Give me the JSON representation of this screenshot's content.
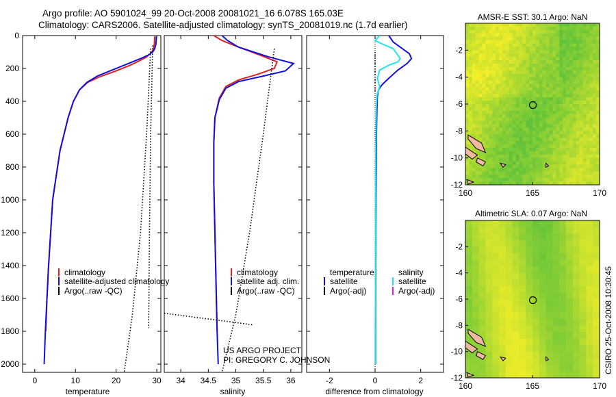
{
  "header": {
    "line1": "Argo profile: AO 5901024_99 20-Oct-2008 20081021_16 6.078S 165.03E",
    "line2": "Climatology: CARS2006. Satellite-adjusted climatology: synTS_20081019.nc (1.7d earlier)"
  },
  "footer_side": "CSIRO 25-Oct-2008 10:30:45",
  "project_credit": [
    "US ARGO PROJECT",
    "PI: GREGORY C. JOHNSON"
  ],
  "colors": {
    "climatology": "#e02020",
    "satellite": "#1010dd",
    "satellite_diff_salinity": "#22e4ee",
    "argo": "#000000",
    "argo_adj_salinity": "#dd22dd",
    "land": "#f0b8a0"
  },
  "chart_data": [
    {
      "type": "line",
      "id": "temperature",
      "xlabel": "temperature",
      "ylabel": "",
      "xlim": [
        -3,
        31
      ],
      "ylim": [
        2050,
        0
      ],
      "x_ticks": [
        0,
        10,
        20,
        30
      ],
      "y_ticks": [
        0,
        200,
        400,
        600,
        800,
        1000,
        1200,
        1400,
        1600,
        1800,
        2000
      ],
      "legend": [
        "climatology",
        "satellite-adjusted climatology",
        "Argo(..raw -QC)"
      ],
      "series": [
        {
          "name": "climatology",
          "style": "solid",
          "color": "#e02020",
          "points": [
            [
              29.5,
              5
            ],
            [
              29.4,
              50
            ],
            [
              29.2,
              80
            ],
            [
              28.8,
              100
            ],
            [
              27.5,
              130
            ],
            [
              26,
              150
            ],
            [
              23.5,
              180
            ],
            [
              20,
              215
            ],
            [
              16,
              250
            ],
            [
              13,
              285
            ],
            [
              11,
              330
            ],
            [
              9.5,
              400
            ],
            [
              8.2,
              500
            ],
            [
              7.2,
              600
            ],
            [
              6.2,
              700
            ],
            [
              5.6,
              800
            ],
            [
              5,
              900
            ],
            [
              4.4,
              1000
            ],
            [
              3.9,
              1200
            ],
            [
              3.4,
              1400
            ],
            [
              3,
              1600
            ],
            [
              2.7,
              1800
            ]
          ]
        },
        {
          "name": "satellite-adjusted climatology",
          "style": "solid",
          "color": "#1010dd",
          "points": [
            [
              29.9,
              5
            ],
            [
              29.8,
              50
            ],
            [
              29.5,
              80
            ],
            [
              29,
              100
            ],
            [
              27.8,
              120
            ],
            [
              26,
              140
            ],
            [
              23,
              170
            ],
            [
              19.5,
              205
            ],
            [
              15.5,
              245
            ],
            [
              12.8,
              285
            ],
            [
              11,
              330
            ],
            [
              9.5,
              400
            ],
            [
              8.2,
              500
            ],
            [
              7.2,
              600
            ],
            [
              6.2,
              700
            ],
            [
              5.6,
              800
            ],
            [
              5,
              900
            ],
            [
              4.4,
              1000
            ],
            [
              3.9,
              1200
            ],
            [
              3.4,
              1400
            ],
            [
              3,
              1600
            ],
            [
              2.6,
              1800
            ],
            [
              2.3,
              2000
            ]
          ]
        },
        {
          "name": "Argo(..raw -QC)",
          "style": "dotted",
          "color": "#000000",
          "points": [
            [
              29,
              60
            ],
            [
              28.5,
              600
            ],
            [
              28.2,
              1200
            ],
            [
              28,
              1780
            ]
          ]
        },
        {
          "name": "Argo(..raw -QC)",
          "style": "dotted",
          "color": "#000000",
          "points": [
            [
              28.5,
              80
            ],
            [
              27.5,
              600
            ],
            [
              26,
              1200
            ],
            [
              24,
              1700
            ],
            [
              22,
              2050
            ]
          ]
        }
      ]
    },
    {
      "type": "line",
      "id": "salinity",
      "xlabel": "salinity",
      "xlim": [
        33.7,
        36.2
      ],
      "ylim": [
        2050,
        0
      ],
      "x_ticks": [
        34,
        34.5,
        35,
        35.5,
        36
      ],
      "legend": [
        "climatology",
        "satellite adj. clim.",
        "Argo(..raw -QC)"
      ],
      "series": [
        {
          "name": "climatology",
          "style": "solid",
          "color": "#e02020",
          "points": [
            [
              34.6,
              0
            ],
            [
              34.75,
              30
            ],
            [
              35.05,
              70
            ],
            [
              35.45,
              120
            ],
            [
              35.75,
              160
            ],
            [
              35.7,
              200
            ],
            [
              35.4,
              235
            ],
            [
              35.05,
              270
            ],
            [
              34.82,
              310
            ],
            [
              34.7,
              380
            ],
            [
              34.62,
              500
            ],
            [
              34.6,
              650
            ],
            [
              34.6,
              900
            ],
            [
              34.62,
              1200
            ],
            [
              34.64,
              1500
            ],
            [
              34.66,
              1800
            ]
          ]
        },
        {
          "name": "satellite adj. clim.",
          "style": "solid",
          "color": "#1010dd",
          "points": [
            [
              34.75,
              0
            ],
            [
              34.85,
              30
            ],
            [
              35.05,
              70
            ],
            [
              35.6,
              130
            ],
            [
              36.05,
              170
            ],
            [
              35.9,
              215
            ],
            [
              35.45,
              250
            ],
            [
              35.05,
              280
            ],
            [
              34.82,
              320
            ],
            [
              34.7,
              390
            ],
            [
              34.62,
              500
            ],
            [
              34.6,
              650
            ],
            [
              34.6,
              900
            ],
            [
              34.62,
              1200
            ],
            [
              34.64,
              1500
            ],
            [
              34.66,
              1800
            ],
            [
              34.68,
              2000
            ]
          ]
        },
        {
          "name": "Argo(..raw -QC)",
          "style": "dotted",
          "color": "#000000",
          "points": [
            [
              35.7,
              80
            ],
            [
              35.5,
              600
            ],
            [
              35.25,
              1200
            ],
            [
              35,
              1700
            ],
            [
              34.75,
              2050
            ]
          ]
        },
        {
          "name": "Argo(..raw -QC)",
          "style": "dotted",
          "color": "#000000",
          "points": [
            [
              33.7,
              1690
            ],
            [
              35.3,
              1760
            ]
          ]
        }
      ]
    },
    {
      "type": "line",
      "id": "difference",
      "xlabel": "difference from climatology",
      "xlim": [
        -3,
        3
      ],
      "ylim": [
        2050,
        0
      ],
      "x_ticks": [
        -2,
        0,
        2
      ],
      "legend_temperature": [
        "temperature",
        "satellite",
        "Argo(-adj)"
      ],
      "legend_salinity": [
        "salinity",
        "satellite",
        "Argo(-adj)"
      ],
      "series": [
        {
          "name": "temperature satellite",
          "style": "solid",
          "color": "#1010dd",
          "points": [
            [
              0.6,
              0
            ],
            [
              0.8,
              40
            ],
            [
              1.2,
              80
            ],
            [
              1.5,
              110
            ],
            [
              1.6,
              140
            ],
            [
              1.4,
              170
            ],
            [
              1,
              210
            ],
            [
              0.6,
              260
            ],
            [
              0.3,
              300
            ],
            [
              0.15,
              330
            ],
            [
              0.1,
              370
            ],
            [
              0.08,
              450
            ],
            [
              0.06,
              600
            ],
            [
              0.05,
              800
            ],
            [
              0.04,
              1000
            ],
            [
              0.03,
              1400
            ],
            [
              0.02,
              1800
            ],
            [
              0.02,
              2000
            ]
          ]
        },
        {
          "name": "salinity satellite",
          "style": "solid",
          "color": "#22e4ee",
          "points": [
            [
              0.2,
              0
            ],
            [
              0,
              30
            ],
            [
              0.3,
              50
            ],
            [
              0.8,
              80
            ],
            [
              1.1,
              140
            ],
            [
              1,
              160
            ],
            [
              0.6,
              180
            ],
            [
              0.2,
              210
            ],
            [
              0.1,
              260
            ],
            [
              0.2,
              310
            ],
            [
              0.08,
              360
            ],
            [
              0.05,
              450
            ],
            [
              0.03,
              700
            ],
            [
              0.02,
              1000
            ],
            [
              0.02,
              1400
            ],
            [
              0.01,
              1800
            ],
            [
              0.01,
              2000
            ]
          ]
        },
        {
          "name": "Argo(-adj)",
          "style": "dotted",
          "color": "#000000",
          "points": [
            [
              0,
              100
            ],
            [
              0,
              350
            ]
          ]
        }
      ]
    },
    {
      "type": "heatmap",
      "id": "amsr-map",
      "title": "AMSR-E SST: 30.1  Argo: NaN",
      "xlim": [
        160,
        170
      ],
      "ylim": [
        -12,
        0
      ],
      "x_ticks": [
        160,
        165,
        170
      ],
      "y_ticks": [
        -2,
        -4,
        -6,
        -8,
        -10,
        -12
      ],
      "marker": {
        "lon": 165.03,
        "lat": -6.078
      }
    },
    {
      "type": "heatmap",
      "id": "sla-map",
      "title": "Altimetric SLA: 0.07  Argo: NaN",
      "xlim": [
        160,
        170
      ],
      "ylim": [
        -12,
        0
      ],
      "x_ticks": [
        160,
        165,
        170
      ],
      "y_ticks": [
        -2,
        -4,
        -6,
        -8,
        -10,
        -12
      ],
      "marker": {
        "lon": 165.03,
        "lat": -6.078
      }
    }
  ]
}
